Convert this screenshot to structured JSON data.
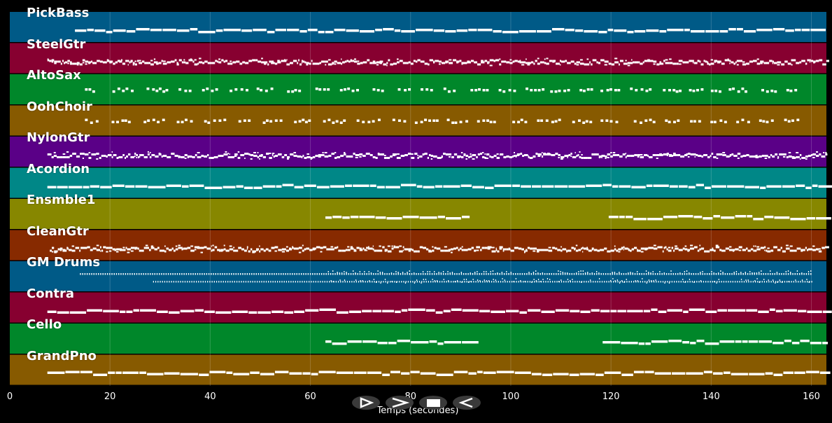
{
  "tracks": [
    {
      "name": "PickBass",
      "color": "#005a87",
      "start": 13,
      "end": 163,
      "pattern": "bass"
    },
    {
      "name": "SteelGtr",
      "color": "#870030",
      "start": 7.5,
      "end": 163,
      "pattern": "dense"
    },
    {
      "name": "AltoSax",
      "color": "#00872a",
      "start": 15,
      "end": 158,
      "pattern": "phrase"
    },
    {
      "name": "OohChoir",
      "color": "#875a00",
      "start": 15,
      "end": 158,
      "pattern": "phrase"
    },
    {
      "name": "NylonGtr",
      "color": "#5a0087",
      "start": 7.5,
      "end": 163,
      "pattern": "dense"
    },
    {
      "name": "Acordion",
      "color": "#008787",
      "start": 7.5,
      "end": 163,
      "pattern": "steady"
    },
    {
      "name": "Ensmble1",
      "color": "#878700",
      "start": 63,
      "end": 163,
      "gap": [
        91,
        118
      ],
      "pattern": "steady"
    },
    {
      "name": "CleanGtr",
      "color": "#872a00",
      "start": 8,
      "end": 163,
      "pattern": "dense2"
    },
    {
      "name": "GM Drums",
      "color": "#005a87",
      "start": 14,
      "end": 160,
      "pattern": "drums"
    },
    {
      "name": "Contra",
      "color": "#870030",
      "start": 7.5,
      "end": 163,
      "pattern": "steady"
    },
    {
      "name": "Cello",
      "color": "#00872a",
      "start": 63,
      "end": 163,
      "gap": [
        91,
        118
      ],
      "pattern": "steady"
    },
    {
      "name": "GrandPno",
      "color": "#875a00",
      "start": 7.5,
      "end": 163,
      "pattern": "steady"
    }
  ],
  "axis": {
    "xlabel": "Temps (secondes)",
    "min": 0,
    "max": 163,
    "ticks": [
      "0",
      "20",
      "40",
      "60",
      "80",
      "100",
      "120",
      "140",
      "160"
    ]
  },
  "controls": [
    {
      "name": "play-outline-button",
      "icon": "play-outline-icon"
    },
    {
      "name": "forward-button",
      "icon": "chevron-right-icon"
    },
    {
      "name": "stop-button",
      "icon": "stop-icon"
    },
    {
      "name": "back-button",
      "icon": "chevron-left-icon"
    }
  ]
}
